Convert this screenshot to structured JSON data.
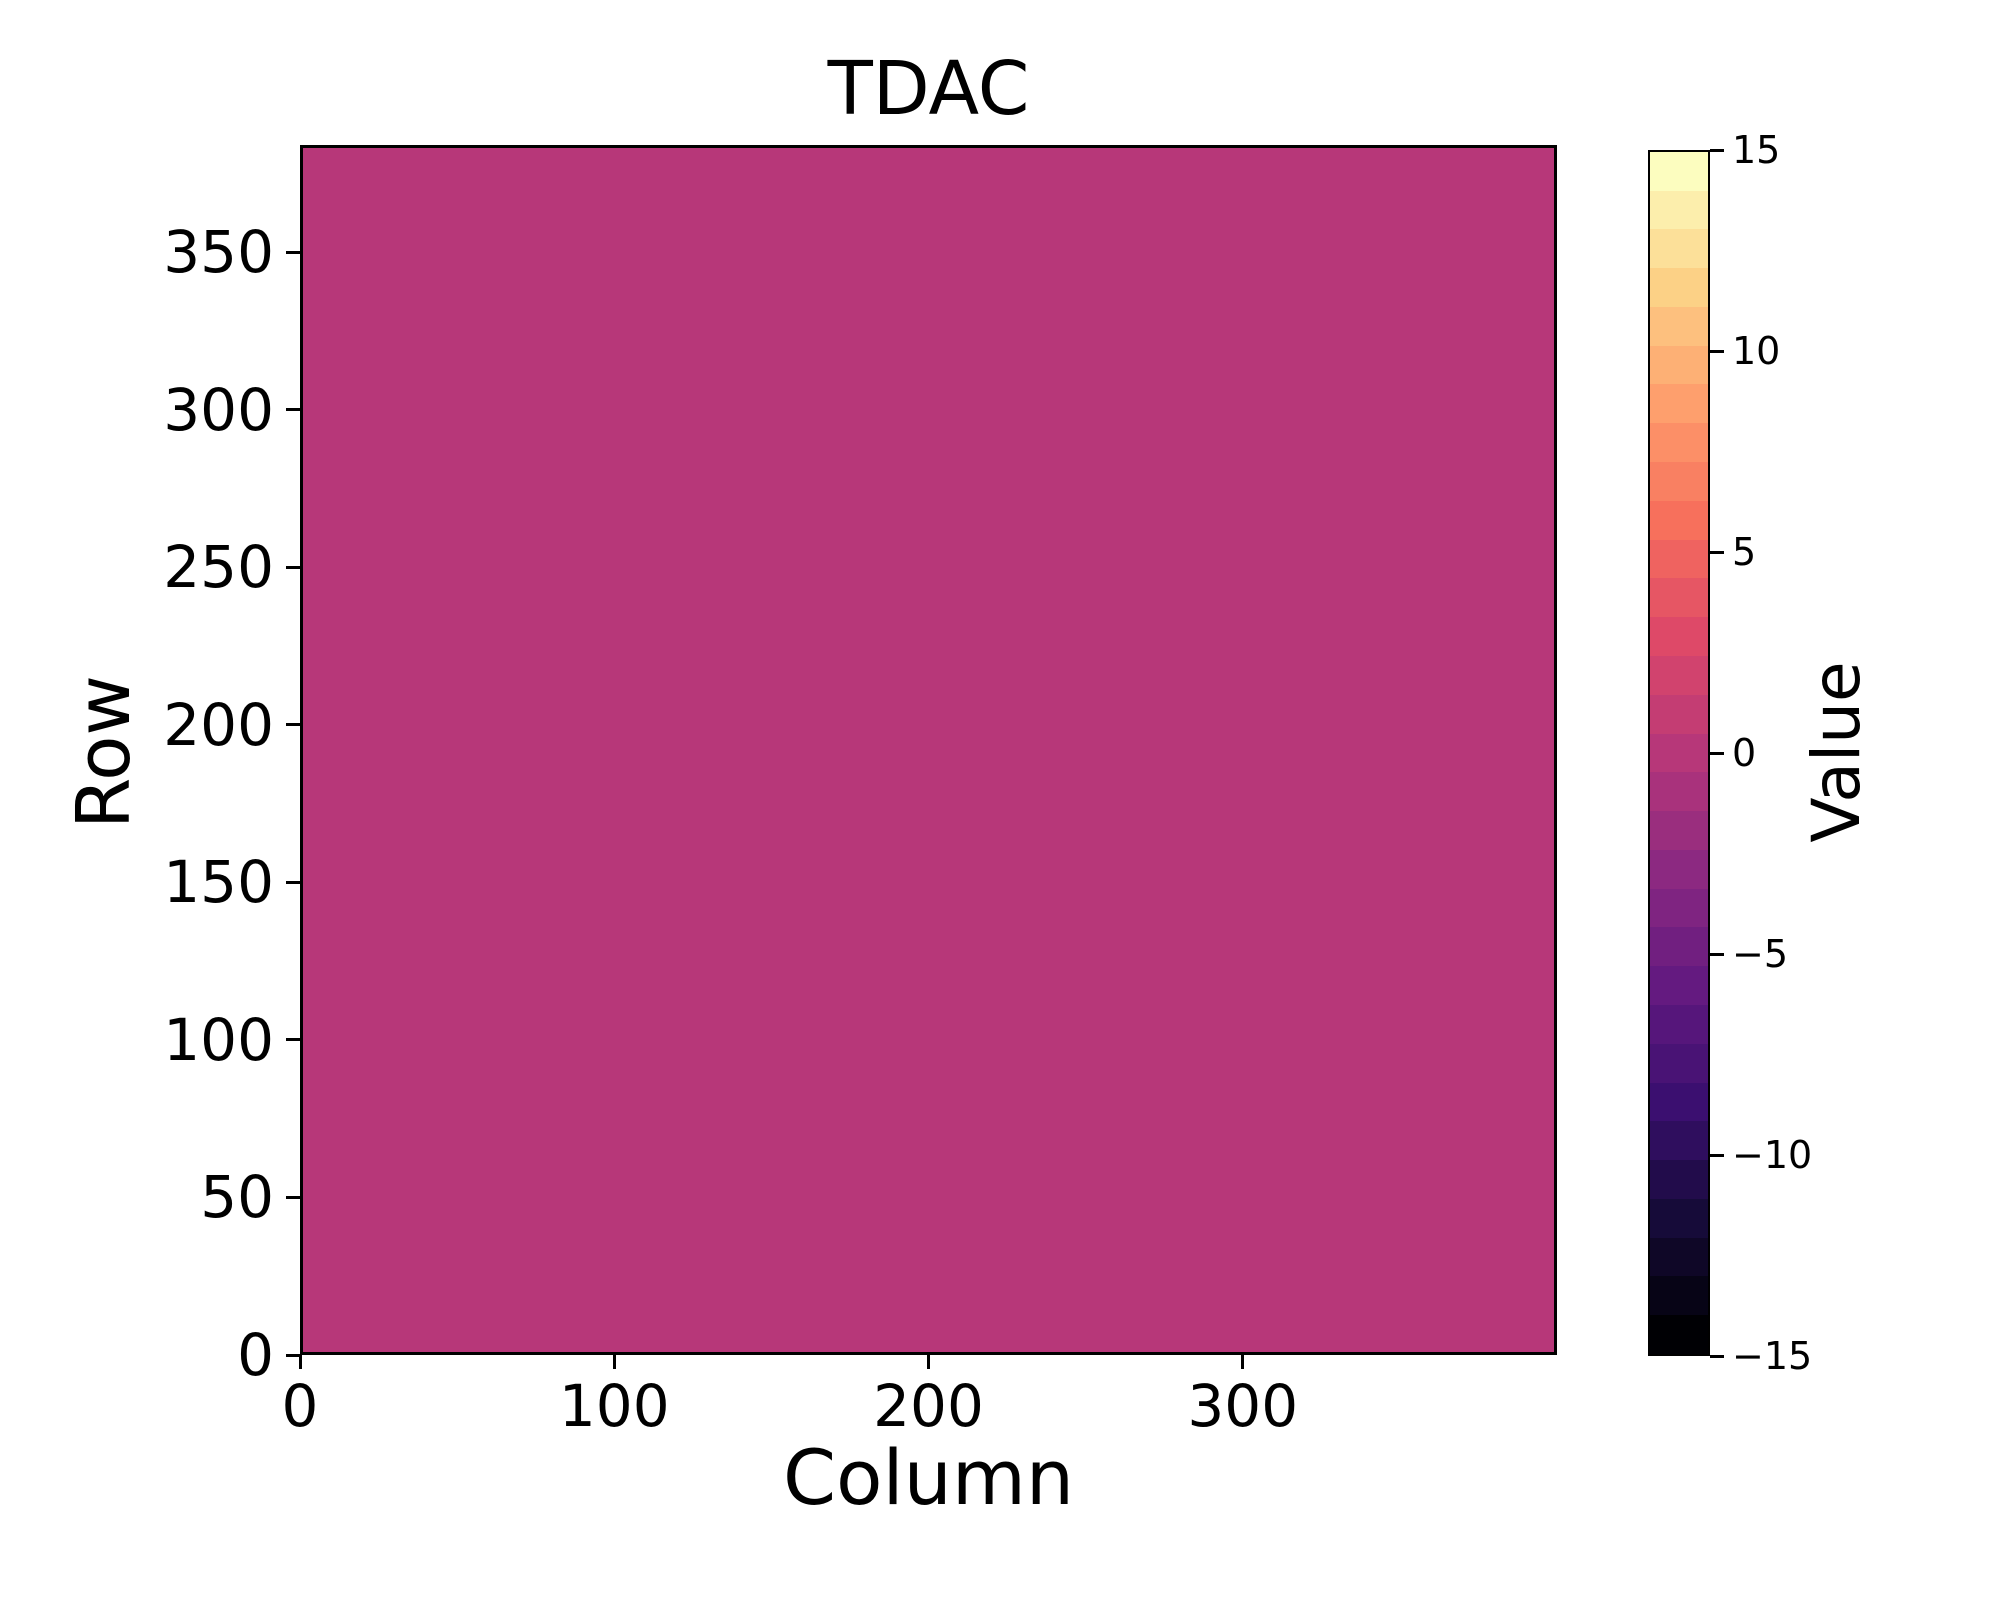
{
  "figure": {
    "background": "#ffffff",
    "text_color": "#000000",
    "spine_color": "#000000"
  },
  "chart_data": {
    "type": "heatmap",
    "title": "TDAC",
    "xlabel": "Column",
    "ylabel": "Row",
    "x_range": [
      0,
      400
    ],
    "y_range": [
      0,
      384
    ],
    "x_ticks": [
      0,
      100,
      200,
      300
    ],
    "y_ticks": [
      0,
      50,
      100,
      150,
      200,
      250,
      300,
      350
    ],
    "grid": false,
    "n_columns": 400,
    "n_rows": 384,
    "data_description": "uniform matrix: every cell has the same value",
    "uniform_value": 0,
    "fill_color": "#b73779",
    "colorbar": {
      "label": "Value",
      "vmin": -15,
      "vmax": 15,
      "ticks": [
        15,
        10,
        5,
        0,
        -5,
        -10,
        -15
      ],
      "n_levels": 31,
      "colormap": "magma",
      "colormap_anchors": [
        "#000004",
        "#160b39",
        "#3b0f70",
        "#641a80",
        "#8c2981",
        "#b73779",
        "#de4968",
        "#f7705c",
        "#fe9f6d",
        "#fcd186",
        "#fcfdbf"
      ],
      "legend_position": "right"
    }
  }
}
